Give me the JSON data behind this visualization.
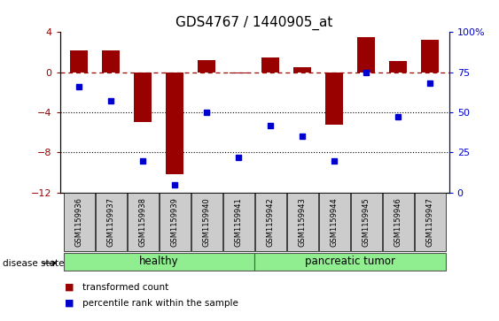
{
  "title": "GDS4767 / 1440905_at",
  "samples": [
    "GSM1159936",
    "GSM1159937",
    "GSM1159938",
    "GSM1159939",
    "GSM1159940",
    "GSM1159941",
    "GSM1159942",
    "GSM1159943",
    "GSM1159944",
    "GSM1159945",
    "GSM1159946",
    "GSM1159947"
  ],
  "transformed_count": [
    2.2,
    2.2,
    -5.0,
    -10.2,
    1.2,
    -0.1,
    1.5,
    0.5,
    -5.2,
    3.5,
    1.1,
    3.2
  ],
  "percentile_rank": [
    66,
    57,
    20,
    5,
    50,
    22,
    42,
    35,
    20,
    75,
    47,
    68
  ],
  "healthy_color": "#90ee90",
  "bar_color": "#990000",
  "dot_color": "#0000cc",
  "left_ylim": [
    -12,
    4
  ],
  "right_ylim": [
    0,
    100
  ],
  "left_yticks": [
    -12,
    -8,
    -4,
    0,
    4
  ],
  "right_yticks": [
    0,
    25,
    50,
    75,
    100
  ],
  "right_yticklabels": [
    "0",
    "25",
    "50",
    "75",
    "100%"
  ],
  "dotted_lines": [
    -4,
    -8
  ],
  "tick_label_bg": "#cccccc",
  "healthy_count": 6,
  "tumor_count": 6
}
